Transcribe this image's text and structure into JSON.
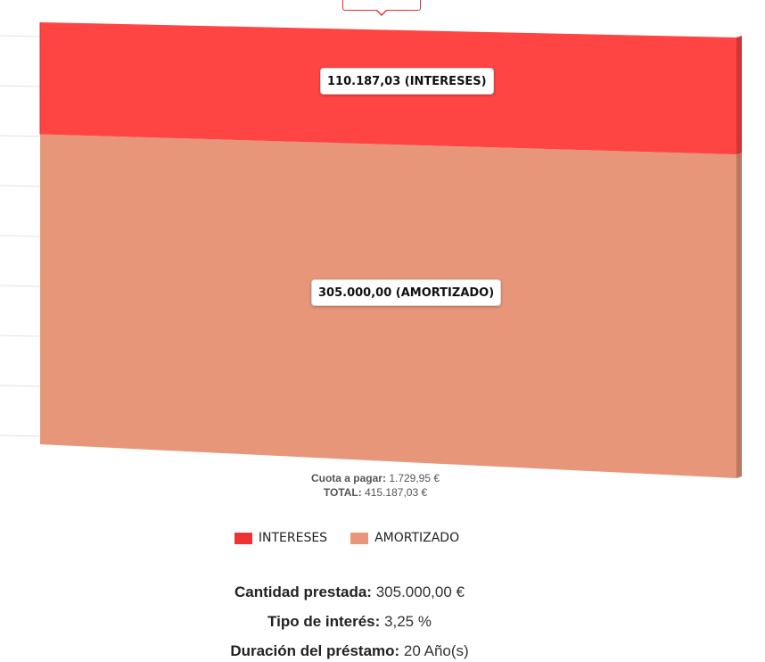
{
  "chart_data": {
    "type": "bar",
    "stacked": true,
    "categories": [
      ""
    ],
    "series": [
      {
        "name": "AMORTIZADO",
        "values": [
          305000.0
        ],
        "label": "305.000,00 (AMORTIZADO)",
        "color": "#e8967a"
      },
      {
        "name": "INTERESES",
        "values": [
          110187.03
        ],
        "label": "110.187,03 (INTERESES)",
        "color": "#ff4444"
      }
    ],
    "ylim": [
      0,
      415187.03
    ],
    "grid": true,
    "legend_position": "bottom-center"
  },
  "caption": {
    "cuota_label": "Cuota a pagar:",
    "cuota_value": "1.729,95 €",
    "total_label": "TOTAL:",
    "total_value": "415.187,03 €"
  },
  "legend": [
    {
      "name": "INTERESES",
      "color": "#ee3333"
    },
    {
      "name": "AMORTIZADO",
      "color": "#e8967a"
    }
  ],
  "summary": {
    "amount_label": "Cantidad prestada:",
    "amount_value": "305.000,00 €",
    "rate_label": "Tipo de interés:",
    "rate_value": "3,25 %",
    "duration_label": "Duración del préstamo:",
    "duration_value": "20 Año(s)"
  }
}
